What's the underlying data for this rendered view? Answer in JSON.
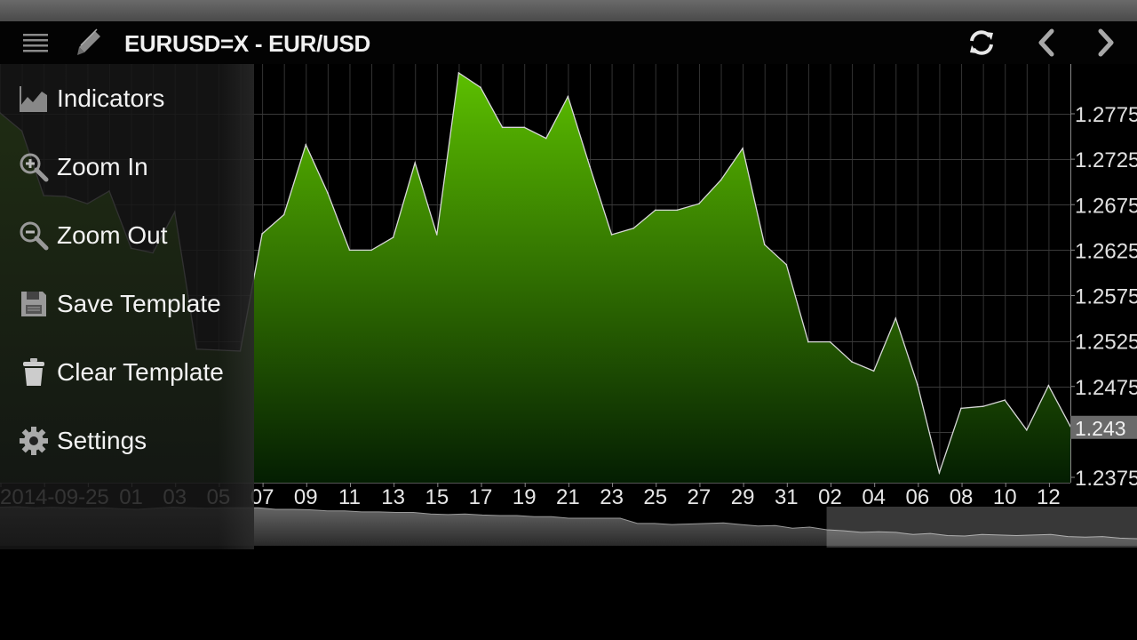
{
  "header": {
    "title": "EURUSD=X - EUR/USD",
    "icons": [
      "menu-icon",
      "pencil-icon",
      "refresh-icon",
      "chevron-left-icon",
      "chevron-right-icon"
    ]
  },
  "menu": {
    "items": [
      {
        "label": "Indicators",
        "icon": "indicators-chart-icon"
      },
      {
        "label": "Zoom In",
        "icon": "zoom-in-icon"
      },
      {
        "label": "Zoom Out",
        "icon": "zoom-out-icon"
      },
      {
        "label": "Save Template",
        "icon": "floppy-disk-icon"
      },
      {
        "label": "Clear Template",
        "icon": "trash-icon"
      },
      {
        "label": "Settings",
        "icon": "gear-icon"
      }
    ]
  },
  "colors": {
    "area_top": "#5cbf00",
    "area_bottom": "#041e02",
    "line": "#d8d8d8",
    "grid": "#333333",
    "price_label_bg": "#6a6a6a"
  },
  "chart_data": {
    "type": "area",
    "title": "EURUSD=X - EUR/USD",
    "values": [
      1.2776,
      1.2756,
      1.2685,
      1.2684,
      1.2676,
      1.269,
      1.2627,
      1.2622,
      1.2667,
      1.2516,
      1.2515,
      1.2514,
      1.2643,
      1.2664,
      1.2741,
      1.2688,
      1.2625,
      1.2625,
      1.2639,
      1.2721,
      1.2642,
      1.282,
      1.2804,
      1.276,
      1.276,
      1.2748,
      1.2794,
      1.2717,
      1.2642,
      1.2649,
      1.2669,
      1.2669,
      1.2676,
      1.2702,
      1.2737,
      1.2631,
      1.2609,
      1.2524,
      1.2524,
      1.2502,
      1.2492,
      1.255,
      1.2477,
      1.238,
      1.2451,
      1.2453,
      1.246,
      1.2427,
      1.2476,
      1.2431
    ],
    "x_tick_labels": [
      "2014-09-25",
      "01",
      "03",
      "05",
      "07",
      "09",
      "11",
      "13",
      "15",
      "17",
      "19",
      "21",
      "23",
      "25",
      "27",
      "29",
      "31",
      "02",
      "04",
      "06",
      "08",
      "10",
      "12"
    ],
    "y_ticks": [
      "1.2775",
      "1.2725",
      "1.2675",
      "1.2625",
      "1.2575",
      "1.2525",
      "1.2475",
      "1.2375"
    ],
    "y_tick_values": [
      1.2775,
      1.2725,
      1.2675,
      1.2625,
      1.2575,
      1.2525,
      1.2475,
      1.2375
    ],
    "ylim": [
      1.237,
      1.2836
    ],
    "last_price_label": "1.243",
    "last_price": 1.243,
    "grid": true,
    "y_axis_position": "right",
    "navigator": {
      "values": [
        1.393,
        1.394,
        1.392,
        1.393,
        1.392,
        1.391,
        1.392,
        1.39,
        1.389,
        1.391,
        1.393,
        1.392,
        1.391,
        1.392,
        1.392,
        1.392,
        1.389,
        1.389,
        1.388,
        1.386,
        1.386,
        1.384,
        1.384,
        1.383,
        1.383,
        1.38,
        1.379,
        1.38,
        1.378,
        1.377,
        1.377,
        1.375,
        1.375,
        1.372,
        1.372,
        1.372,
        1.372,
        1.362,
        1.362,
        1.36,
        1.361,
        1.362,
        1.363,
        1.36,
        1.357,
        1.358,
        1.353,
        1.355,
        1.35,
        1.348,
        1.345,
        1.346,
        1.345,
        1.341,
        1.343,
        1.339,
        1.338,
        1.341,
        1.34,
        1.339,
        1.34,
        1.341,
        1.337,
        1.336,
        1.337,
        1.334,
        1.333
      ],
      "window_fraction": [
        0.727,
        1.0
      ]
    }
  }
}
